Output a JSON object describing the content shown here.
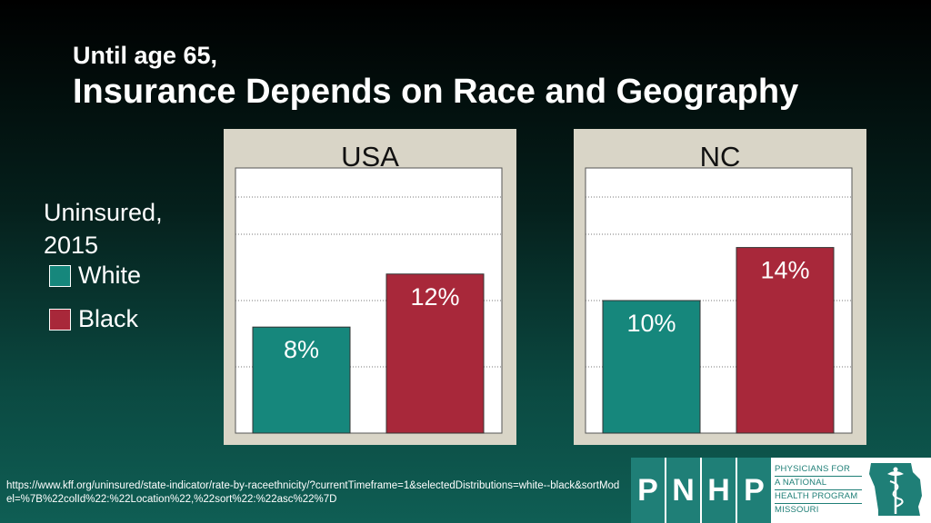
{
  "slide": {
    "subtitle": "Until age 65,",
    "title": "Insurance Depends on Race and Geography"
  },
  "legend": {
    "title": "Uninsured, 2015",
    "items": [
      {
        "label": "White",
        "color": "#16877c"
      },
      {
        "label": "Black",
        "color": "#a8283a"
      }
    ]
  },
  "chart_data": [
    {
      "type": "bar",
      "title": "USA",
      "categories": [
        "White",
        "Black"
      ],
      "values": [
        8,
        12
      ],
      "labels": [
        "8%",
        "12%"
      ],
      "colors": [
        "#16877c",
        "#a8283a"
      ],
      "ylim": [
        0,
        20
      ],
      "grid": true
    },
    {
      "type": "bar",
      "title": "NC",
      "categories": [
        "White",
        "Black"
      ],
      "values": [
        10,
        14
      ],
      "labels": [
        "10%",
        "14%"
      ],
      "colors": [
        "#16877c",
        "#a8283a"
      ],
      "ylim": [
        0,
        20
      ],
      "grid": true
    }
  ],
  "footnote": "https://www.kff.org/uninsured/state-indicator/rate-by-raceethnicity/?currentTimeframe=1&selectedDistributions=white--black&sortModel=%7B%22colId%22:%22Location%22,%22sort%22:%22asc%22%7D",
  "logo": {
    "letters": [
      "P",
      "N",
      "H",
      "P"
    ],
    "tagline": [
      "PHYSICIANS FOR",
      "A NATIONAL",
      "HEALTH PROGRAM",
      "MISSOURI"
    ],
    "icon": "missouri-caduceus-icon"
  }
}
